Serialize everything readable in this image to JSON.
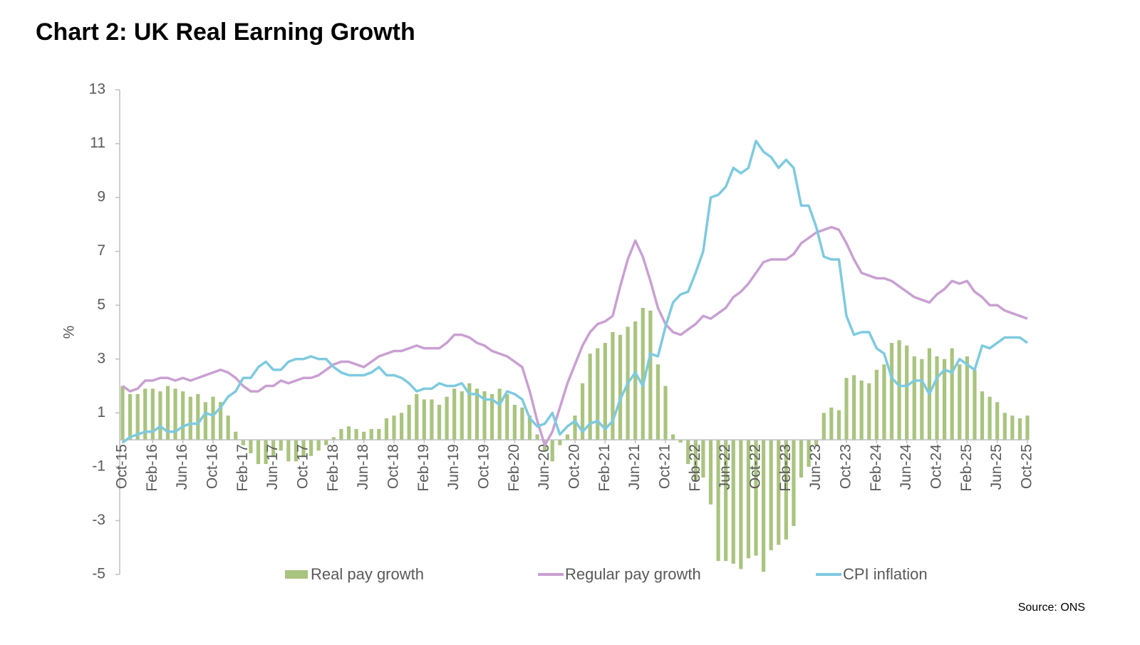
{
  "chart_data": {
    "type": "combo",
    "title": "Chart 2: UK Real Earning Growth",
    "ylabel": "%",
    "source": "Source: ONS",
    "categories": [
      "Oct-15",
      null,
      null,
      null,
      "Feb-16",
      null,
      null,
      null,
      "Jun-16",
      null,
      null,
      null,
      "Oct-16",
      null,
      null,
      null,
      "Feb-17",
      null,
      null,
      null,
      "Jun-17",
      null,
      null,
      null,
      "Oct-17",
      null,
      null,
      null,
      "Feb-18",
      null,
      null,
      null,
      "Jun-18",
      null,
      null,
      null,
      "Oct-18",
      null,
      null,
      null,
      "Feb-19",
      null,
      null,
      null,
      "Jun-19",
      null,
      null,
      null,
      "Oct-19",
      null,
      null,
      null,
      "Feb-20",
      null,
      null,
      null,
      "Jun-20",
      null,
      null,
      null,
      "Oct-20",
      null,
      null,
      null,
      "Feb-21",
      null,
      null,
      null,
      "Jun-21",
      null,
      null,
      null,
      "Oct-21",
      null,
      null,
      null,
      "Feb-22",
      null,
      null,
      null,
      "Jun-22",
      null,
      null,
      null,
      "Oct-22",
      null,
      null,
      null,
      "Feb-23",
      null,
      null,
      null,
      "Jun-23",
      null,
      null,
      null,
      "Oct-23",
      null,
      null,
      null,
      "Feb-24",
      null,
      null,
      null,
      "Jun-24",
      null,
      null,
      null,
      "Oct-24",
      null,
      null,
      null,
      "Feb-25",
      null,
      null,
      null,
      "Jun-25",
      null,
      null,
      null,
      "Oct-25"
    ],
    "series": [
      {
        "name": "Real pay growth",
        "type": "bar",
        "color": "#a9c47f",
        "values": [
          2.0,
          1.7,
          1.7,
          1.9,
          1.9,
          1.8,
          2.0,
          1.9,
          1.8,
          1.6,
          1.7,
          1.4,
          1.6,
          1.4,
          0.9,
          0.3,
          -0.2,
          -0.5,
          -0.9,
          -0.9,
          -0.6,
          -0.4,
          -0.8,
          -0.8,
          -0.6,
          -0.6,
          -0.4,
          -0.2,
          0.1,
          0.4,
          0.5,
          0.4,
          0.3,
          0.4,
          0.4,
          0.8,
          0.9,
          1.0,
          1.3,
          1.7,
          1.5,
          1.5,
          1.3,
          1.6,
          1.9,
          1.8,
          2.1,
          1.9,
          1.8,
          1.7,
          1.9,
          1.7,
          1.3,
          1.2,
          0.9,
          0.2,
          -0.4,
          -0.8,
          -0.2,
          0.2,
          0.9,
          2.1,
          3.2,
          3.4,
          3.6,
          4.0,
          3.9,
          4.2,
          4.4,
          4.9,
          4.8,
          2.8,
          2.0,
          0.2,
          -0.1,
          -0.9,
          -1.5,
          -1.4,
          -2.4,
          -4.5,
          -4.5,
          -4.6,
          -4.8,
          -4.4,
          -4.3,
          -4.9,
          -4.1,
          -3.9,
          -3.7,
          -3.2,
          -1.4,
          -1.0,
          -0.2,
          1.0,
          1.2,
          1.1,
          2.3,
          2.4,
          2.2,
          2.1,
          2.6,
          2.8,
          3.6,
          3.7,
          3.5,
          3.1,
          3.0,
          3.4,
          3.1,
          3.0,
          3.4,
          2.8,
          3.1,
          2.6,
          1.8,
          1.6,
          1.4,
          1.0,
          0.9,
          0.8,
          0.9
        ]
      },
      {
        "name": "Regular pay growth",
        "type": "line",
        "color": "#c9a0d2",
        "values": [
          2.0,
          1.8,
          1.9,
          2.2,
          2.2,
          2.3,
          2.3,
          2.2,
          2.3,
          2.2,
          2.3,
          2.4,
          2.5,
          2.6,
          2.5,
          2.3,
          2.0,
          1.8,
          1.8,
          2.0,
          2.0,
          2.2,
          2.1,
          2.2,
          2.3,
          2.3,
          2.4,
          2.6,
          2.8,
          2.9,
          2.9,
          2.8,
          2.7,
          2.9,
          3.1,
          3.2,
          3.3,
          3.3,
          3.4,
          3.5,
          3.4,
          3.4,
          3.4,
          3.6,
          3.9,
          3.9,
          3.8,
          3.6,
          3.5,
          3.3,
          3.2,
          3.1,
          2.9,
          2.7,
          1.8,
          0.7,
          -0.2,
          0.3,
          1.2,
          2.1,
          2.8,
          3.5,
          4.0,
          4.3,
          4.4,
          4.6,
          5.7,
          6.7,
          7.4,
          6.8,
          5.9,
          4.9,
          4.3,
          4.0,
          3.9,
          4.1,
          4.3,
          4.6,
          4.5,
          4.7,
          4.9,
          5.3,
          5.5,
          5.8,
          6.2,
          6.6,
          6.7,
          6.7,
          6.7,
          6.9,
          7.3,
          7.5,
          7.7,
          7.8,
          7.9,
          7.8,
          7.3,
          6.7,
          6.2,
          6.1,
          6.0,
          6.0,
          5.9,
          5.7,
          5.5,
          5.3,
          5.2,
          5.1,
          5.4,
          5.6,
          5.9,
          5.8,
          5.9,
          5.5,
          5.3,
          5.0,
          5.0,
          4.8,
          4.7,
          4.6,
          4.5
        ]
      },
      {
        "name": "CPI inflation",
        "type": "line",
        "color": "#7ecadf",
        "values": [
          -0.1,
          0.1,
          0.2,
          0.3,
          0.3,
          0.5,
          0.3,
          0.3,
          0.5,
          0.6,
          0.6,
          1.0,
          0.9,
          1.2,
          1.6,
          1.8,
          2.3,
          2.3,
          2.7,
          2.9,
          2.6,
          2.6,
          2.9,
          3.0,
          3.0,
          3.1,
          3.0,
          3.0,
          2.7,
          2.5,
          2.4,
          2.4,
          2.4,
          2.5,
          2.7,
          2.4,
          2.4,
          2.3,
          2.1,
          1.8,
          1.9,
          1.9,
          2.1,
          2.0,
          2.0,
          2.1,
          1.7,
          1.7,
          1.5,
          1.5,
          1.3,
          1.8,
          1.7,
          1.5,
          0.8,
          0.5,
          0.6,
          1.0,
          0.2,
          0.5,
          0.7,
          0.3,
          0.6,
          0.7,
          0.4,
          0.7,
          1.5,
          2.1,
          2.5,
          2.0,
          3.2,
          3.1,
          4.2,
          5.1,
          5.4,
          5.5,
          6.2,
          7.0,
          9.0,
          9.1,
          9.4,
          10.1,
          9.9,
          10.1,
          11.1,
          10.7,
          10.5,
          10.1,
          10.4,
          10.1,
          8.7,
          8.7,
          7.9,
          6.8,
          6.7,
          6.7,
          4.6,
          3.9,
          4.0,
          4.0,
          3.4,
          3.2,
          2.3,
          2.0,
          2.0,
          2.2,
          2.2,
          1.7,
          2.3,
          2.6,
          2.5,
          3.0,
          2.8,
          2.6,
          3.5,
          3.4,
          3.6,
          3.8,
          3.8,
          3.8,
          3.6
        ]
      }
    ],
    "ylim": [
      -5,
      13
    ],
    "yticks": [
      -5,
      -3,
      -1,
      1,
      3,
      5,
      7,
      9,
      11,
      13
    ],
    "legend": "bottom"
  }
}
